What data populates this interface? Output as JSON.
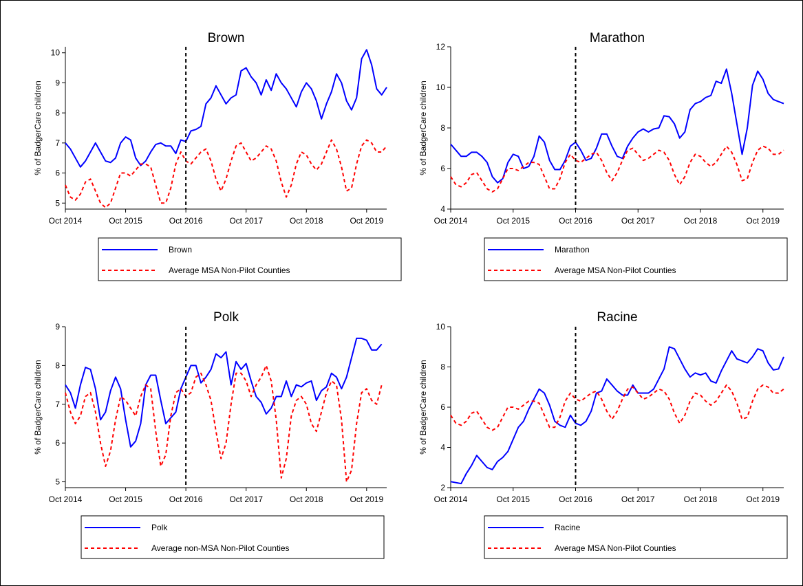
{
  "chart_data": [
    {
      "type": "line",
      "title": "Brown",
      "ylabel": "% of BadgerCare children",
      "xlim": [
        "2014-10",
        "2020-02"
      ],
      "ylim": [
        4.8,
        10.2
      ],
      "xticks": [
        {
          "x": "2014-10",
          "label": "Oct 2014"
        },
        {
          "x": "2015-10",
          "label": "Oct 2015"
        },
        {
          "x": "2016-10",
          "label": "Oct 2016"
        },
        {
          "x": "2017-10",
          "label": "Oct 2017"
        },
        {
          "x": "2018-10",
          "label": "Oct 2018"
        },
        {
          "x": "2019-10",
          "label": "Oct 2019"
        }
      ],
      "yticks": [
        5,
        6,
        7,
        8,
        9,
        10
      ],
      "vline": "2016-10",
      "x_start": "2014-10",
      "legend": [
        {
          "name": "Brown",
          "style": "solid",
          "color": "#0000ff"
        },
        {
          "name": "Average MSA Non-Pilot Counties",
          "style": "dashed",
          "color": "#ff0000"
        }
      ],
      "series": [
        {
          "name": "Brown",
          "color": "#0000ff",
          "style": "solid",
          "values": [
            7.0,
            6.8,
            6.5,
            6.2,
            6.4,
            6.7,
            7.0,
            6.7,
            6.4,
            6.35,
            6.5,
            7.0,
            7.2,
            7.1,
            6.5,
            6.25,
            6.4,
            6.7,
            6.95,
            7.0,
            6.9,
            6.9,
            6.65,
            7.1,
            7.05,
            7.4,
            7.45,
            7.55,
            8.3,
            8.5,
            8.9,
            8.6,
            8.3,
            8.5,
            8.6,
            9.4,
            9.5,
            9.2,
            9.0,
            8.6,
            9.1,
            8.75,
            9.3,
            9.0,
            8.8,
            8.5,
            8.2,
            8.7,
            9.0,
            8.8,
            8.4,
            7.8,
            8.3,
            8.7,
            9.3,
            9.0,
            8.4,
            8.1,
            8.5,
            9.8,
            10.1,
            9.6,
            8.8,
            8.6,
            8.85
          ]
        },
        {
          "name": "Average MSA Non-Pilot Counties",
          "color": "#ff0000",
          "style": "dashed",
          "values": [
            5.6,
            5.2,
            5.1,
            5.3,
            5.7,
            5.8,
            5.4,
            5.0,
            4.85,
            5.0,
            5.5,
            6.0,
            6.0,
            5.9,
            6.1,
            6.3,
            6.3,
            6.2,
            5.6,
            5.0,
            5.0,
            5.5,
            6.3,
            6.7,
            6.4,
            6.3,
            6.5,
            6.7,
            6.8,
            6.4,
            5.8,
            5.4,
            5.8,
            6.4,
            6.9,
            7.0,
            6.7,
            6.4,
            6.5,
            6.7,
            6.9,
            6.8,
            6.4,
            5.7,
            5.2,
            5.6,
            6.3,
            6.7,
            6.6,
            6.3,
            6.1,
            6.3,
            6.7,
            7.1,
            6.8,
            6.2,
            5.4,
            5.5,
            6.3,
            6.9,
            7.1,
            7.0,
            6.7,
            6.7,
            6.9
          ]
        }
      ]
    },
    {
      "type": "line",
      "title": "Marathon",
      "ylabel": "% of BadgerCare children",
      "xlim": [
        "2014-10",
        "2020-02"
      ],
      "ylim": [
        4,
        12
      ],
      "xticks": [
        {
          "x": "2014-10",
          "label": "Oct 2014"
        },
        {
          "x": "2015-10",
          "label": "Oct 2015"
        },
        {
          "x": "2016-10",
          "label": "Oct 2016"
        },
        {
          "x": "2017-10",
          "label": "Oct 2017"
        },
        {
          "x": "2018-10",
          "label": "Oct 2018"
        },
        {
          "x": "2019-10",
          "label": "Oct 2019"
        }
      ],
      "yticks": [
        4,
        6,
        8,
        10,
        12
      ],
      "vline": "2016-10",
      "x_start": "2014-10",
      "legend": [
        {
          "name": "Marathon",
          "style": "solid",
          "color": "#0000ff"
        },
        {
          "name": "Average MSA Non-Pilot Counties",
          "style": "dashed",
          "color": "#ff0000"
        }
      ],
      "series": [
        {
          "name": "Marathon",
          "color": "#0000ff",
          "style": "solid",
          "values": [
            7.2,
            6.9,
            6.6,
            6.6,
            6.8,
            6.8,
            6.6,
            6.3,
            5.6,
            5.3,
            5.5,
            6.3,
            6.7,
            6.6,
            6.0,
            6.1,
            6.6,
            7.6,
            7.3,
            6.4,
            5.95,
            5.95,
            6.4,
            7.1,
            7.3,
            6.9,
            6.4,
            6.5,
            7.0,
            7.7,
            7.7,
            7.1,
            6.6,
            6.5,
            7.1,
            7.5,
            7.8,
            7.95,
            7.8,
            7.95,
            8.0,
            8.6,
            8.55,
            8.2,
            7.5,
            7.8,
            8.9,
            9.2,
            9.3,
            9.5,
            9.6,
            10.3,
            10.2,
            10.9,
            9.7,
            8.2,
            6.7,
            8.0,
            10.1,
            10.8,
            10.4,
            9.7,
            9.4,
            9.3,
            9.2
          ]
        },
        {
          "name": "Average MSA Non-Pilot Counties",
          "color": "#ff0000",
          "style": "dashed",
          "values": [
            5.6,
            5.2,
            5.1,
            5.3,
            5.7,
            5.8,
            5.4,
            5.0,
            4.85,
            5.0,
            5.5,
            6.0,
            6.0,
            5.9,
            6.1,
            6.3,
            6.3,
            6.2,
            5.6,
            5.0,
            5.0,
            5.5,
            6.3,
            6.7,
            6.4,
            6.3,
            6.5,
            6.7,
            6.8,
            6.4,
            5.8,
            5.4,
            5.8,
            6.4,
            6.9,
            7.0,
            6.7,
            6.4,
            6.5,
            6.7,
            6.9,
            6.8,
            6.4,
            5.7,
            5.2,
            5.6,
            6.3,
            6.7,
            6.6,
            6.3,
            6.1,
            6.3,
            6.7,
            7.1,
            6.8,
            6.2,
            5.4,
            5.5,
            6.3,
            6.9,
            7.1,
            7.0,
            6.7,
            6.7,
            6.9
          ]
        }
      ]
    },
    {
      "type": "line",
      "title": "Polk",
      "ylabel": "% of BadgerCare children",
      "xlim": [
        "2014-10",
        "2020-02"
      ],
      "ylim": [
        4.85,
        9
      ],
      "xticks": [
        {
          "x": "2014-10",
          "label": "Oct 2014"
        },
        {
          "x": "2015-10",
          "label": "Oct 2015"
        },
        {
          "x": "2016-10",
          "label": "Oct 2016"
        },
        {
          "x": "2017-10",
          "label": "Oct 2017"
        },
        {
          "x": "2018-10",
          "label": "Oct 2018"
        },
        {
          "x": "2019-10",
          "label": "Oct 2019"
        }
      ],
      "yticks": [
        5,
        6,
        7,
        8,
        9
      ],
      "vline": "2016-10",
      "x_start": "2014-10",
      "legend": [
        {
          "name": "Polk",
          "style": "solid",
          "color": "#0000ff"
        },
        {
          "name": "Average non-MSA Non-Pilot Counties",
          "style": "dashed",
          "color": "#ff0000"
        }
      ],
      "series": [
        {
          "name": "Polk",
          "color": "#0000ff",
          "style": "solid",
          "values": [
            7.5,
            7.3,
            6.9,
            7.5,
            7.95,
            7.9,
            7.4,
            6.6,
            6.8,
            7.35,
            7.7,
            7.4,
            6.6,
            5.9,
            6.05,
            6.5,
            7.5,
            7.75,
            7.75,
            7.1,
            6.5,
            6.65,
            6.8,
            7.4,
            7.7,
            8.0,
            8.0,
            7.55,
            7.7,
            7.9,
            8.3,
            8.2,
            8.35,
            7.5,
            8.1,
            7.9,
            8.05,
            7.6,
            7.2,
            7.05,
            6.75,
            6.9,
            7.2,
            7.2,
            7.6,
            7.2,
            7.5,
            7.45,
            7.55,
            7.6,
            7.1,
            7.35,
            7.45,
            7.8,
            7.7,
            7.4,
            7.7,
            8.2,
            8.7,
            8.7,
            8.65,
            8.4,
            8.4,
            8.55
          ]
        },
        {
          "name": "Average non-MSA Non-Pilot Counties",
          "color": "#ff0000",
          "style": "dashed",
          "values": [
            7.3,
            6.8,
            6.5,
            6.7,
            7.2,
            7.3,
            6.8,
            6.0,
            5.4,
            5.8,
            6.6,
            7.2,
            7.1,
            6.9,
            6.7,
            7.2,
            7.5,
            7.4,
            6.3,
            5.4,
            5.7,
            6.7,
            7.3,
            7.4,
            7.2,
            7.3,
            7.7,
            7.8,
            7.5,
            7.1,
            6.3,
            5.6,
            6.0,
            7.0,
            7.8,
            7.8,
            7.6,
            7.2,
            7.5,
            7.7,
            8.0,
            7.6,
            6.6,
            5.1,
            5.6,
            6.7,
            7.1,
            7.2,
            7.0,
            6.5,
            6.3,
            6.8,
            7.3,
            7.6,
            7.5,
            6.6,
            5.0,
            5.3,
            6.5,
            7.3,
            7.4,
            7.1,
            7.0,
            7.5
          ]
        }
      ]
    },
    {
      "type": "line",
      "title": "Racine",
      "ylabel": "% of BadgerCare children",
      "xlim": [
        "2014-10",
        "2020-02"
      ],
      "ylim": [
        2,
        10
      ],
      "xticks": [
        {
          "x": "2014-10",
          "label": "Oct 2014"
        },
        {
          "x": "2015-10",
          "label": "Oct 2015"
        },
        {
          "x": "2016-10",
          "label": "Oct 2016"
        },
        {
          "x": "2017-10",
          "label": "Oct 2017"
        },
        {
          "x": "2018-10",
          "label": "Oct 2018"
        },
        {
          "x": "2019-10",
          "label": "Oct 2019"
        }
      ],
      "yticks": [
        2,
        4,
        6,
        8,
        10
      ],
      "vline": "2016-10",
      "x_start": "2014-10",
      "legend": [
        {
          "name": "Racine",
          "style": "solid",
          "color": "#0000ff"
        },
        {
          "name": "Average MSA Non-Pilot Counties",
          "style": "dashed",
          "color": "#ff0000"
        }
      ],
      "series": [
        {
          "name": "Racine",
          "color": "#0000ff",
          "style": "solid",
          "values": [
            2.3,
            2.25,
            2.2,
            2.7,
            3.1,
            3.6,
            3.3,
            3.0,
            2.9,
            3.3,
            3.5,
            3.8,
            4.4,
            5.0,
            5.3,
            5.9,
            6.4,
            6.9,
            6.7,
            6.1,
            5.3,
            5.1,
            5.0,
            5.6,
            5.2,
            5.1,
            5.3,
            5.8,
            6.7,
            6.8,
            7.4,
            7.1,
            6.8,
            6.6,
            6.6,
            7.1,
            6.7,
            6.7,
            6.7,
            6.9,
            7.4,
            7.9,
            9.0,
            8.9,
            8.4,
            7.9,
            7.5,
            7.7,
            7.6,
            7.7,
            7.3,
            7.2,
            7.8,
            8.3,
            8.8,
            8.4,
            8.3,
            8.2,
            8.5,
            8.9,
            8.8,
            8.2,
            7.85,
            7.9,
            8.5
          ]
        },
        {
          "name": "Average MSA Non-Pilot Counties",
          "color": "#ff0000",
          "style": "dashed",
          "values": [
            5.6,
            5.2,
            5.1,
            5.3,
            5.7,
            5.8,
            5.4,
            5.0,
            4.85,
            5.0,
            5.5,
            6.0,
            6.0,
            5.9,
            6.1,
            6.3,
            6.3,
            6.2,
            5.6,
            5.0,
            5.0,
            5.5,
            6.3,
            6.7,
            6.4,
            6.3,
            6.5,
            6.7,
            6.8,
            6.4,
            5.8,
            5.4,
            5.8,
            6.4,
            6.9,
            7.0,
            6.7,
            6.4,
            6.5,
            6.7,
            6.9,
            6.8,
            6.4,
            5.7,
            5.2,
            5.6,
            6.3,
            6.7,
            6.6,
            6.3,
            6.1,
            6.3,
            6.7,
            7.1,
            6.8,
            6.2,
            5.4,
            5.5,
            6.3,
            6.9,
            7.1,
            7.0,
            6.7,
            6.7,
            6.9
          ]
        }
      ]
    }
  ]
}
